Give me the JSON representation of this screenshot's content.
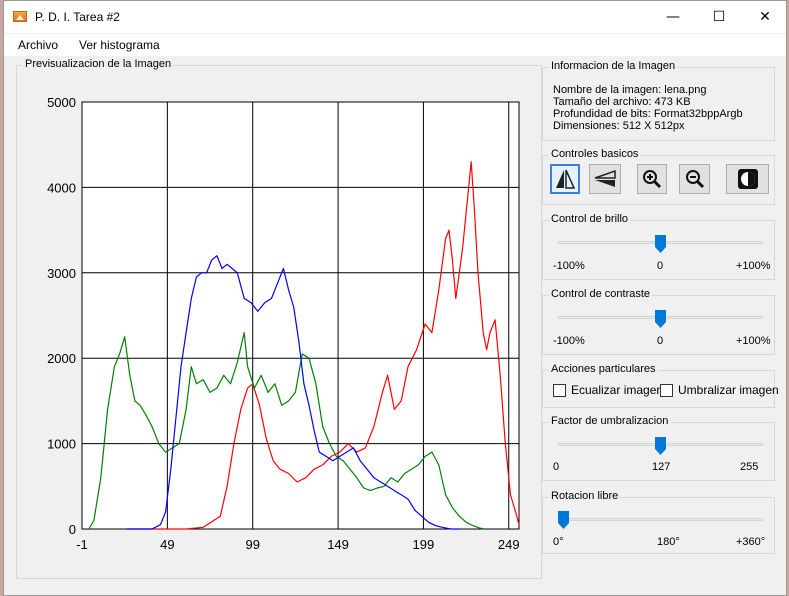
{
  "window": {
    "title": "P. D. I. Tarea #2",
    "minimize": "—",
    "maximize": "☐",
    "close": "✕"
  },
  "menu": {
    "items": [
      "Archivo",
      "Ver histograma"
    ]
  },
  "preview": {
    "title": "Previsualizacion de la Imagen"
  },
  "info": {
    "title": "Informacion de la Imagen",
    "name_line": "Nombre de la imagen:  lena.png",
    "size_line": "Tamaño del archivo:   473 KB",
    "depth_line": "Profundidad de bits:   Format32bppArgb",
    "dims_line": "Dimensiones:      512 X 512px"
  },
  "controls": {
    "title": "Controles basicos",
    "buttons": [
      "flip-horizontal-icon",
      "flip-vertical-icon",
      "zoom-in-icon",
      "zoom-out-icon",
      "invert-icon"
    ]
  },
  "brightness": {
    "title": "Control de brillo",
    "min_label": "-100%",
    "mid_label": "0",
    "max_label": "+100%",
    "value_fraction": 0.5
  },
  "contrast": {
    "title": "Control de contraste",
    "min_label": "-100%",
    "mid_label": "0",
    "max_label": "+100%",
    "value_fraction": 0.5
  },
  "actions": {
    "title": "Acciones particulares",
    "equalize": "Ecualizar imagen",
    "threshold": "Umbralizar imagen"
  },
  "threshold_factor": {
    "title": "Factor de umbralizacion",
    "min_label": "0",
    "mid_label": "127",
    "max_label": "255",
    "value_fraction": 0.5
  },
  "rotation": {
    "title": "Rotacion libre",
    "min_label": "0°",
    "mid_label": "180°",
    "max_label": "+360°",
    "value_fraction": 0.0
  },
  "chart_data": {
    "type": "line",
    "xlim": [
      -1,
      255
    ],
    "ylim": [
      0,
      5000
    ],
    "x_ticks": [
      -1,
      49,
      99,
      149,
      199,
      249
    ],
    "y_ticks": [
      0,
      1000,
      2000,
      3000,
      4000,
      5000
    ],
    "grid": true,
    "series": [
      {
        "color": "#ff0000",
        "points": [
          [
            25,
            0
          ],
          [
            60,
            0
          ],
          [
            70,
            20
          ],
          [
            80,
            150
          ],
          [
            84,
            500
          ],
          [
            88,
            1000
          ],
          [
            92,
            1400
          ],
          [
            96,
            1650
          ],
          [
            99,
            1700
          ],
          [
            103,
            1450
          ],
          [
            107,
            1050
          ],
          [
            111,
            800
          ],
          [
            115,
            700
          ],
          [
            120,
            650
          ],
          [
            125,
            550
          ],
          [
            130,
            600
          ],
          [
            135,
            700
          ],
          [
            140,
            750
          ],
          [
            145,
            850
          ],
          [
            150,
            900
          ],
          [
            155,
            1000
          ],
          [
            160,
            900
          ],
          [
            165,
            950
          ],
          [
            170,
            1200
          ],
          [
            175,
            1600
          ],
          [
            178,
            1800
          ],
          [
            182,
            1400
          ],
          [
            186,
            1500
          ],
          [
            190,
            1900
          ],
          [
            195,
            2100
          ],
          [
            200,
            2400
          ],
          [
            204,
            2300
          ],
          [
            208,
            2800
          ],
          [
            212,
            3400
          ],
          [
            214,
            3500
          ],
          [
            216,
            3150
          ],
          [
            218,
            2700
          ],
          [
            220,
            3000
          ],
          [
            222,
            3300
          ],
          [
            224,
            3700
          ],
          [
            226,
            4100
          ],
          [
            227,
            4300
          ],
          [
            229,
            3700
          ],
          [
            231,
            3000
          ],
          [
            234,
            2300
          ],
          [
            236,
            2100
          ],
          [
            238,
            2300
          ],
          [
            241,
            2450
          ],
          [
            244,
            1800
          ],
          [
            247,
            1000
          ],
          [
            250,
            400
          ],
          [
            253,
            200
          ],
          [
            255,
            50
          ]
        ]
      },
      {
        "color": "#008000",
        "points": [
          [
            3,
            0
          ],
          [
            6,
            100
          ],
          [
            10,
            600
          ],
          [
            14,
            1400
          ],
          [
            18,
            1900
          ],
          [
            21,
            2050
          ],
          [
            24,
            2250
          ],
          [
            27,
            1800
          ],
          [
            30,
            1500
          ],
          [
            33,
            1450
          ],
          [
            36,
            1350
          ],
          [
            40,
            1200
          ],
          [
            44,
            1000
          ],
          [
            48,
            900
          ],
          [
            52,
            950
          ],
          [
            56,
            1000
          ],
          [
            60,
            1400
          ],
          [
            63,
            1900
          ],
          [
            66,
            1700
          ],
          [
            70,
            1750
          ],
          [
            74,
            1600
          ],
          [
            78,
            1650
          ],
          [
            82,
            1800
          ],
          [
            86,
            1700
          ],
          [
            90,
            1950
          ],
          [
            94,
            2300
          ],
          [
            96,
            1900
          ],
          [
            100,
            1650
          ],
          [
            104,
            1800
          ],
          [
            108,
            1600
          ],
          [
            112,
            1700
          ],
          [
            116,
            1450
          ],
          [
            120,
            1500
          ],
          [
            124,
            1600
          ],
          [
            128,
            2050
          ],
          [
            132,
            2000
          ],
          [
            136,
            1700
          ],
          [
            140,
            1200
          ],
          [
            144,
            1000
          ],
          [
            148,
            850
          ],
          [
            152,
            800
          ],
          [
            156,
            700
          ],
          [
            160,
            600
          ],
          [
            164,
            480
          ],
          [
            168,
            450
          ],
          [
            172,
            480
          ],
          [
            176,
            500
          ],
          [
            180,
            600
          ],
          [
            184,
            550
          ],
          [
            188,
            650
          ],
          [
            192,
            700
          ],
          [
            196,
            750
          ],
          [
            200,
            850
          ],
          [
            204,
            900
          ],
          [
            208,
            750
          ],
          [
            212,
            400
          ],
          [
            216,
            250
          ],
          [
            220,
            150
          ],
          [
            224,
            80
          ],
          [
            228,
            40
          ],
          [
            232,
            10
          ],
          [
            235,
            0
          ]
        ]
      },
      {
        "color": "#0000ff",
        "points": [
          [
            25,
            0
          ],
          [
            40,
            0
          ],
          [
            45,
            50
          ],
          [
            48,
            200
          ],
          [
            51,
            700
          ],
          [
            54,
            1300
          ],
          [
            57,
            1900
          ],
          [
            60,
            2300
          ],
          [
            63,
            2700
          ],
          [
            66,
            2950
          ],
          [
            69,
            3000
          ],
          [
            72,
            3000
          ],
          [
            75,
            3150
          ],
          [
            78,
            3200
          ],
          [
            81,
            3050
          ],
          [
            84,
            3100
          ],
          [
            87,
            3050
          ],
          [
            90,
            3000
          ],
          [
            94,
            2700
          ],
          [
            98,
            2650
          ],
          [
            102,
            2550
          ],
          [
            106,
            2650
          ],
          [
            110,
            2700
          ],
          [
            114,
            2900
          ],
          [
            117,
            3050
          ],
          [
            120,
            2800
          ],
          [
            123,
            2600
          ],
          [
            126,
            2200
          ],
          [
            129,
            1700
          ],
          [
            132,
            1450
          ],
          [
            135,
            1150
          ],
          [
            138,
            900
          ],
          [
            142,
            850
          ],
          [
            146,
            800
          ],
          [
            150,
            850
          ],
          [
            154,
            900
          ],
          [
            158,
            950
          ],
          [
            162,
            800
          ],
          [
            166,
            700
          ],
          [
            170,
            600
          ],
          [
            174,
            550
          ],
          [
            178,
            500
          ],
          [
            182,
            450
          ],
          [
            186,
            400
          ],
          [
            190,
            350
          ],
          [
            194,
            220
          ],
          [
            198,
            150
          ],
          [
            202,
            80
          ],
          [
            206,
            40
          ],
          [
            210,
            20
          ],
          [
            215,
            0
          ],
          [
            220,
            0
          ]
        ]
      }
    ]
  }
}
